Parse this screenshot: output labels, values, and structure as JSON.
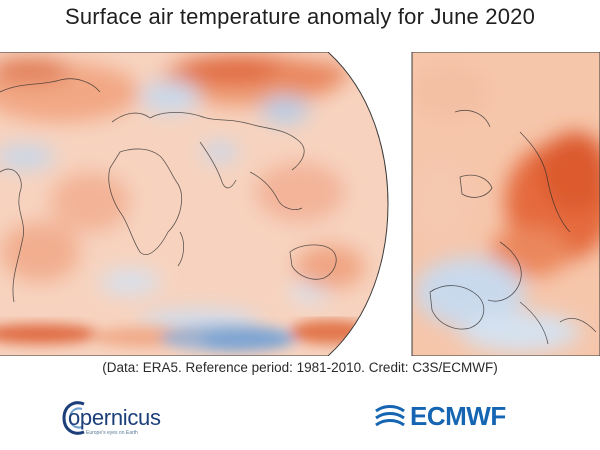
{
  "title": "Surface air temperature anomaly for June 2020",
  "caption": "(Data: ERA5.  Reference period: 1981-2010.  Credit: C3S/ECMWF)",
  "maps": {
    "global": {
      "region": "world",
      "dominant_color": "#f4b99a"
    },
    "europe": {
      "region": "Europe",
      "dominant_color": "#f0a27e"
    }
  },
  "colors": {
    "warm_light": "#f9d9c6",
    "warm_mid": "#f2a07a",
    "warm_strong": "#d9532b",
    "cool_light": "#dbe6f3",
    "cool_mid": "#a9c4e3",
    "cool_strong": "#3e6eb3",
    "coast": "#2b2b2b"
  },
  "logos": {
    "copernicus": {
      "name": "opernicus",
      "tagline": "Europe's eyes on Earth"
    },
    "ecmwf": {
      "name": "ECMWF"
    }
  }
}
